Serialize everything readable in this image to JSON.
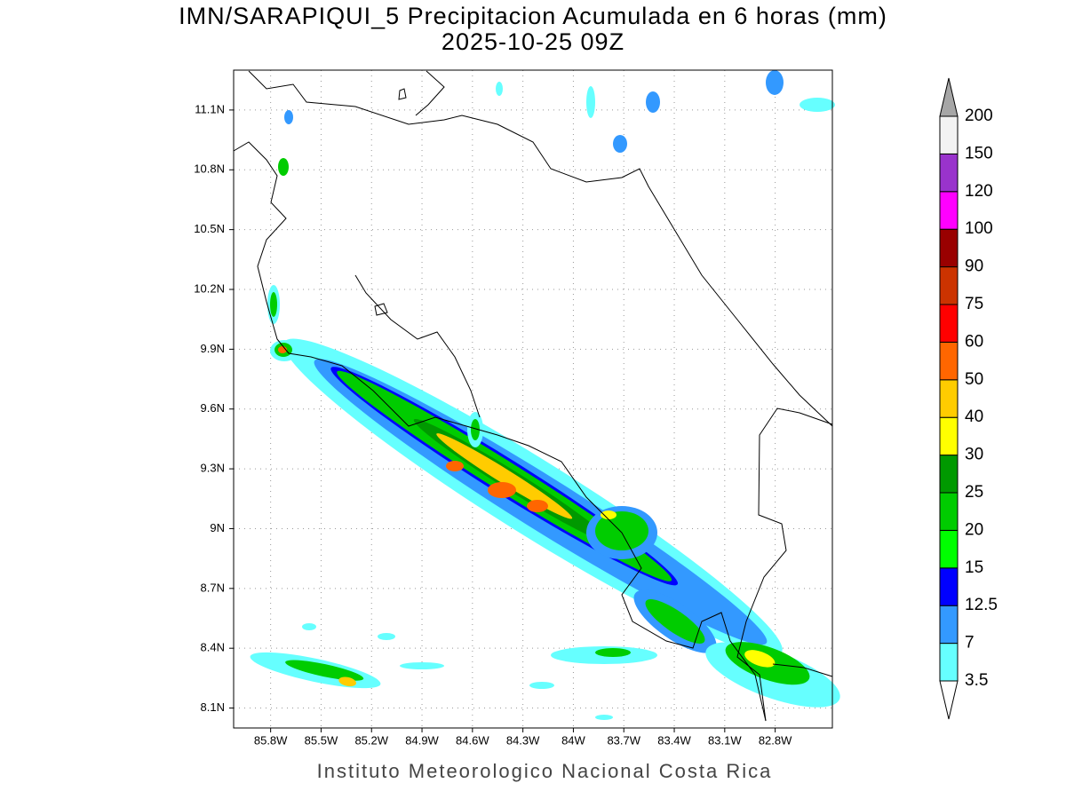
{
  "map": {
    "title": "IMN/SARAPIQUI_5 Precipitacion Acumulada en 6 horas (mm)",
    "subtitle": "2025-10-25 09Z",
    "xlim": [
      -86.02,
      -82.46
    ],
    "ylim": [
      8.0,
      11.3
    ],
    "xticks": [
      {
        "value": -85.8,
        "label": "85.8W"
      },
      {
        "value": -85.5,
        "label": "85.5W"
      },
      {
        "value": -85.2,
        "label": "85.2W"
      },
      {
        "value": -84.9,
        "label": "84.9W"
      },
      {
        "value": -84.6,
        "label": "84.6W"
      },
      {
        "value": -84.3,
        "label": "84.3W"
      },
      {
        "value": -84.0,
        "label": "84W"
      },
      {
        "value": -83.7,
        "label": "83.7W"
      },
      {
        "value": -83.4,
        "label": "83.4W"
      },
      {
        "value": -83.1,
        "label": "83.1W"
      },
      {
        "value": -82.8,
        "label": "82.8W"
      }
    ],
    "yticks": [
      {
        "value": 8.1,
        "label": "8.1N"
      },
      {
        "value": 8.4,
        "label": "8.4N"
      },
      {
        "value": 8.7,
        "label": "8.7N"
      },
      {
        "value": 9.0,
        "label": "9N"
      },
      {
        "value": 9.3,
        "label": "9.3N"
      },
      {
        "value": 9.6,
        "label": "9.6N"
      },
      {
        "value": 9.9,
        "label": "9.9N"
      },
      {
        "value": 10.2,
        "label": "10.2N"
      },
      {
        "value": 10.5,
        "label": "10.5N"
      },
      {
        "value": 10.8,
        "label": "10.8N"
      },
      {
        "value": 11.1,
        "label": "11.1N"
      }
    ],
    "grid": true,
    "colorbar": {
      "levels": [
        3.5,
        7,
        12.5,
        15,
        20,
        25,
        30,
        40,
        50,
        60,
        75,
        90,
        100,
        120,
        150,
        200
      ],
      "colors": [
        "#66ffff",
        "#3399ff",
        "#0000ff",
        "#00ff00",
        "#00cc00",
        "#009900",
        "#ffff00",
        "#ffcc00",
        "#ff6600",
        "#ff0000",
        "#cc3300",
        "#990000",
        "#ff00ff",
        "#9933cc",
        "#f2f2f2"
      ],
      "under_color": "#ffffff",
      "over_color": "#a6a6a6"
    },
    "footer": "Instituto Meteorologico Nacional Costa Rica"
  }
}
